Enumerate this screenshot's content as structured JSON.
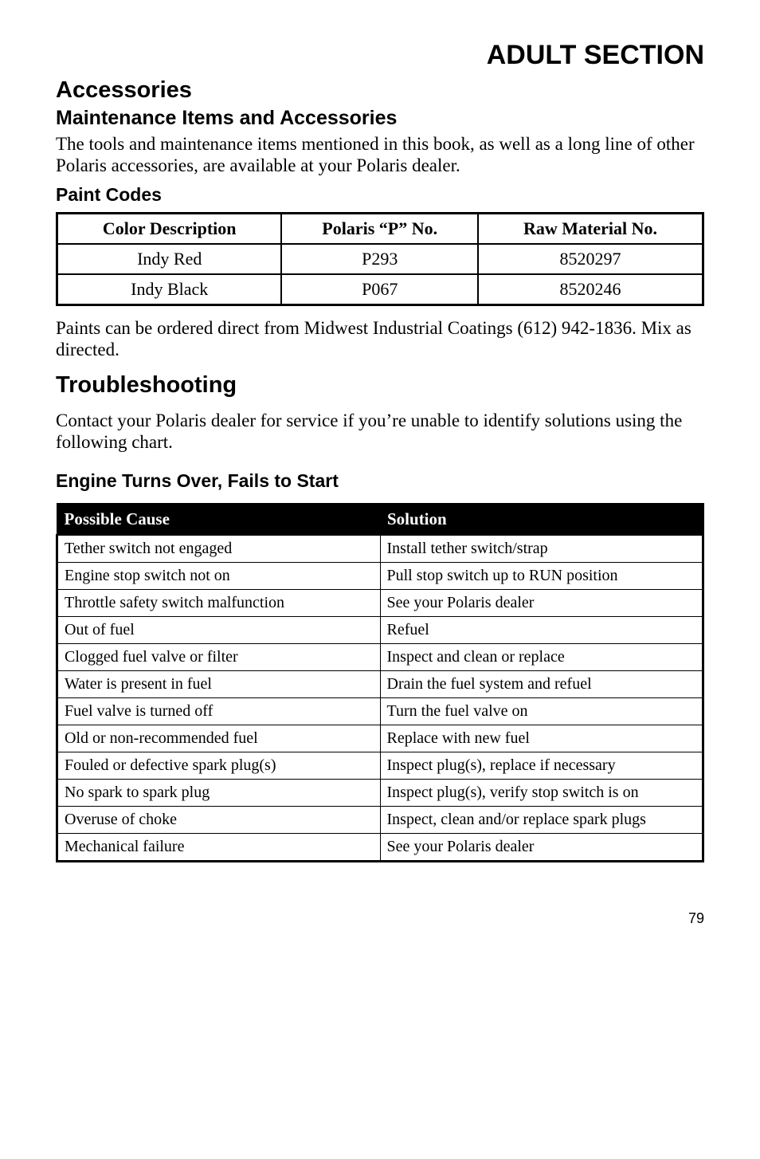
{
  "page_title": "ADULT SECTION",
  "accessories": {
    "heading": "Accessories",
    "sub1": "Maintenance Items and Accessories",
    "para1": "The tools and maintenance items mentioned in this book, as well as a long line of other Polaris accessories, are available at your Polaris dealer.",
    "sub2": "Paint Codes",
    "paint_table": {
      "headers": [
        "Color Description",
        "Polaris “P” No.",
        "Raw Material No."
      ],
      "rows": [
        [
          "Indy Red",
          "P293",
          "8520297"
        ],
        [
          "Indy Black",
          "P067",
          "8520246"
        ]
      ]
    },
    "para2": "Paints can be ordered direct from Midwest Industrial Coatings (612) 942-1836.  Mix as directed."
  },
  "troubleshooting": {
    "heading": "Troubleshooting",
    "para1": "Contact your Polaris dealer for service if you’re unable to identify solutions using the following chart.",
    "sub1": "Engine Turns Over, Fails to Start",
    "table": {
      "headers": [
        "Possible Cause",
        "Solution"
      ],
      "rows": [
        [
          "Tether switch not engaged",
          "Install tether switch/strap"
        ],
        [
          "Engine stop switch not on",
          "Pull stop switch up to RUN position"
        ],
        [
          "Throttle safety switch malfunction",
          "See your Polaris dealer"
        ],
        [
          "Out of fuel",
          "Refuel"
        ],
        [
          "Clogged fuel valve or filter",
          "Inspect and clean or replace"
        ],
        [
          "Water is present in fuel",
          "Drain the fuel system and refuel"
        ],
        [
          "Fuel valve is turned off",
          "Turn the fuel valve on"
        ],
        [
          "Old or non-recommended fuel",
          "Replace with new fuel"
        ],
        [
          "Fouled or defective spark plug(s)",
          "Inspect plug(s), replace if necessary"
        ],
        [
          "No spark to spark plug",
          "Inspect plug(s), verify stop switch is on"
        ],
        [
          "Overuse of choke",
          "Inspect, clean and/or replace spark plugs"
        ],
        [
          "Mechanical failure",
          "See your Polaris dealer"
        ]
      ]
    }
  },
  "page_number": "79"
}
